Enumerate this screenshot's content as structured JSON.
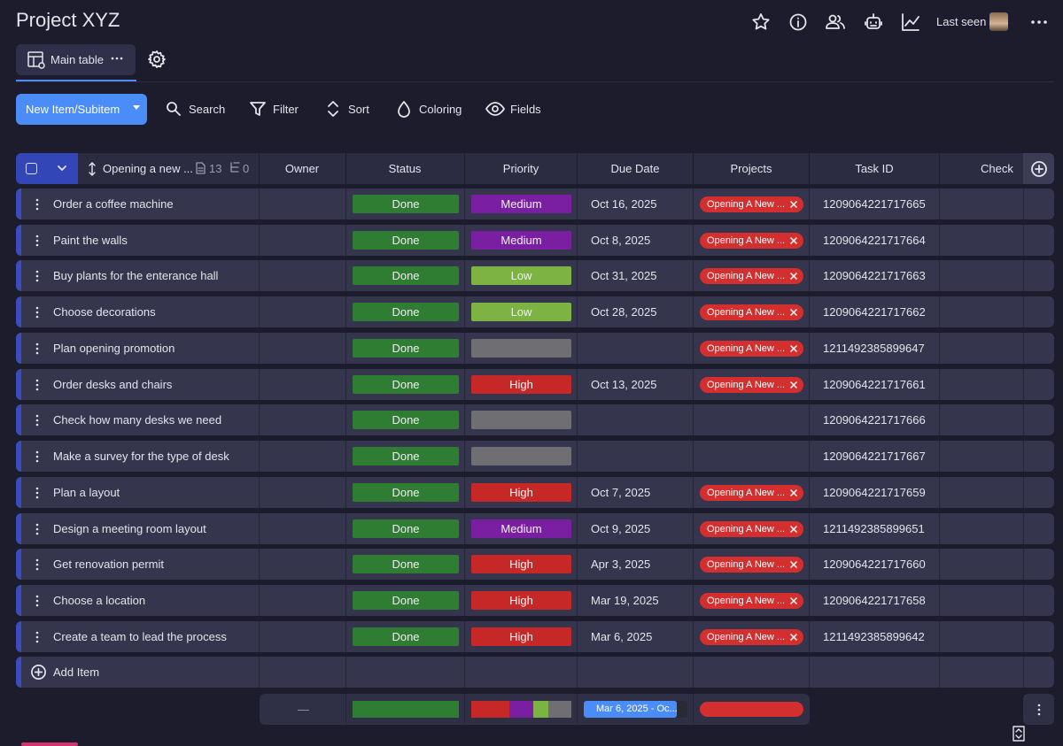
{
  "header": {
    "title": "Project XYZ",
    "last_seen": "Last seen"
  },
  "tabs": {
    "main": "Main table"
  },
  "toolbar": {
    "new_item": "New Item/Subitem",
    "search": "Search",
    "filter": "Filter",
    "sort": "Sort",
    "coloring": "Coloring",
    "fields": "Fields"
  },
  "table": {
    "group": {
      "name": "Opening a new ...",
      "items": "13",
      "subitems": "0"
    },
    "columns": [
      "Owner",
      "Status",
      "Priority",
      "Due Date",
      "Projects",
      "Task ID",
      "Check"
    ],
    "label_colors": {
      "Done": "#2e7d32",
      "High": "#c62828",
      "Medium": "#7b1fa2",
      "Low": "#7cb342"
    },
    "empty_color": "#6f6f73",
    "project_color": "#d32f2f",
    "rows": [
      [
        "Order a coffee machine",
        "Done",
        "Medium",
        "Oct 16, 2025",
        "Opening A New ...",
        "1209064221717665"
      ],
      [
        "Paint the walls",
        "Done",
        "Medium",
        "Oct 8, 2025",
        "Opening A New ...",
        "1209064221717664"
      ],
      [
        "Buy plants for the enterance hall",
        "Done",
        "Low",
        "Oct 31, 2025",
        "Opening A New ...",
        "1209064221717663"
      ],
      [
        "Choose decorations",
        "Done",
        "Low",
        "Oct 28, 2025",
        "Opening A New ...",
        "1209064221717662"
      ],
      [
        "Plan opening promotion",
        "Done",
        null,
        null,
        "Opening A New ...",
        "1211492385899647"
      ],
      [
        "Order desks and chairs",
        "Done",
        "High",
        "Oct 13, 2025",
        "Opening A New ...",
        "1209064221717661"
      ],
      [
        "Check how many desks we need",
        "Done",
        null,
        null,
        null,
        "1209064221717666"
      ],
      [
        "Make a survey for the type of desk",
        "Done",
        null,
        null,
        null,
        "1209064221717667"
      ],
      [
        "Plan a layout",
        "Done",
        "High",
        "Oct 7, 2025",
        "Opening A New ...",
        "1209064221717659"
      ],
      [
        "Design a meeting room layout",
        "Done",
        "Medium",
        "Oct 9, 2025",
        "Opening A New ...",
        "1211492385899651"
      ],
      [
        "Get renovation permit",
        "Done",
        "High",
        "Apr 3, 2025",
        "Opening A New ...",
        "1209064221717660"
      ],
      [
        "Choose a location",
        "Done",
        "High",
        "Mar 19, 2025",
        "Opening A New ...",
        "1209064221717658"
      ],
      [
        "Create a team to lead the process",
        "Done",
        "High",
        "Mar 6, 2025",
        "Opening A New ...",
        "1211492385899642"
      ]
    ],
    "add_item": "Add Item",
    "summary": {
      "owner": "—",
      "due": "Mar 6, 2025 - Oc..."
    }
  }
}
